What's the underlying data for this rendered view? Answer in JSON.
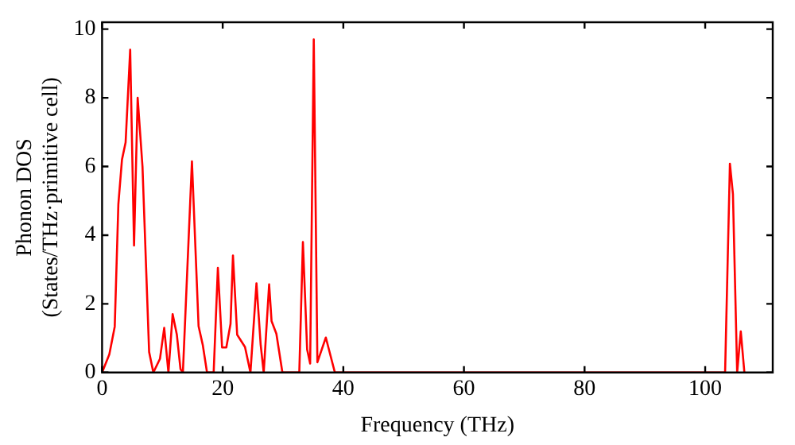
{
  "chart_data": {
    "type": "line",
    "xlabel": "Frequency (THz)",
    "ylabel": "Phonon DOS\n(States/THz·primitive cell)",
    "xlim": [
      0,
      111.2
    ],
    "ylim": [
      0,
      10.2
    ],
    "xticks": [
      0,
      20,
      40,
      60,
      80,
      100
    ],
    "yticks": [
      0,
      2,
      4,
      6,
      8,
      10
    ],
    "grid": false,
    "legend": false,
    "marker": "none",
    "line_style": "solid",
    "series": [
      {
        "color": "#ff0000",
        "x": [
          0,
          1.2,
          2.1,
          2.7,
          3.3,
          3.9,
          4.66,
          5.3,
          5.9,
          6.7,
          7.8,
          8.5,
          9.6,
          10.3,
          11.0,
          11.7,
          12.4,
          13.0,
          13.4,
          14.9,
          16.0,
          16.7,
          17.4,
          18.5,
          19.2,
          19.9,
          20.6,
          21.3,
          21.7,
          22.4,
          23.7,
          24.6,
          25.6,
          26.3,
          26.8,
          27.7,
          28.1,
          28.9,
          29.9,
          32.7,
          33.3,
          34.0,
          34.5,
          35.1,
          35.7,
          37.1,
          38.6,
          103.3,
          104.1,
          104.6,
          105.3,
          105.9,
          106.5
        ],
        "values": [
          0,
          0.53,
          1.34,
          4.9,
          6.2,
          6.7,
          9.4,
          3.7,
          8.0,
          6.0,
          0.6,
          0,
          0.4,
          1.3,
          0,
          1.7,
          1.1,
          0.1,
          0,
          6.15,
          1.35,
          0.8,
          0,
          0,
          3.05,
          0.73,
          0.73,
          1.42,
          3.41,
          1.1,
          0.74,
          0,
          2.6,
          0.8,
          0,
          2.57,
          1.5,
          1.13,
          0,
          0,
          3.8,
          0.67,
          0.26,
          9.7,
          0.3,
          1.02,
          0,
          0,
          6.08,
          5.2,
          0,
          1.2,
          0
        ]
      }
    ]
  }
}
